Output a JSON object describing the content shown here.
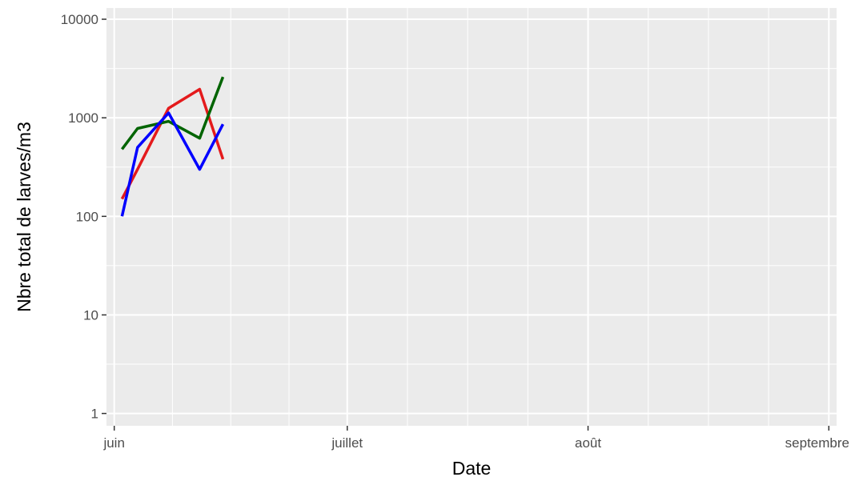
{
  "chart_data": {
    "type": "line",
    "xlabel": "Date",
    "ylabel": "Nbre total de larves/m3",
    "yscale": "log10",
    "xlim": [
      "2015-05-31",
      "2015-09-02"
    ],
    "ylim": [
      0.75,
      13000
    ],
    "grid": true,
    "legend": "none",
    "x_ticks": [
      {
        "date": "2015-06-01",
        "label": "juin"
      },
      {
        "date": "2015-07-01",
        "label": "juillet"
      },
      {
        "date": "2015-08-01",
        "label": "août"
      },
      {
        "date": "2015-09-01",
        "label": "septembre"
      }
    ],
    "y_ticks": [
      1,
      10,
      100,
      1000,
      10000
    ],
    "y_tick_labels": [
      "1",
      "10",
      "100",
      "1000",
      "10000"
    ],
    "series": [
      {
        "color": "#e41a1c",
        "x": [
          "2015-06-02",
          "2015-06-04",
          "2015-06-08",
          "2015-06-12",
          "2015-06-15"
        ],
        "y": [
          150,
          300,
          1250,
          1950,
          380
        ]
      },
      {
        "color": "#006400",
        "x": [
          "2015-06-02",
          "2015-06-04",
          "2015-06-08",
          "2015-06-12",
          "2015-06-15"
        ],
        "y": [
          480,
          780,
          920,
          620,
          2600
        ]
      },
      {
        "color": "#0000ff",
        "x": [
          "2015-06-02",
          "2015-06-04",
          "2015-06-08",
          "2015-06-12",
          "2015-06-15"
        ],
        "y": [
          100,
          500,
          1120,
          300,
          860
        ]
      }
    ]
  }
}
